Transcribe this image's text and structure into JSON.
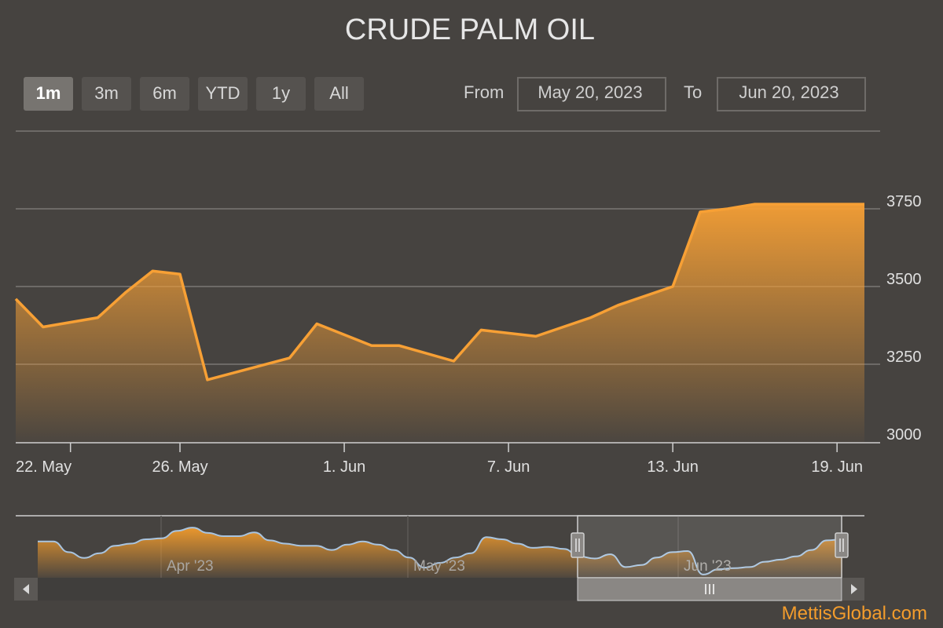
{
  "title": "CRUDE PALM OIL",
  "range_selector": {
    "buttons": [
      {
        "label": "1m",
        "selected": true
      },
      {
        "label": "3m",
        "selected": false
      },
      {
        "label": "6m",
        "selected": false
      },
      {
        "label": "YTD",
        "selected": false
      },
      {
        "label": "1y",
        "selected": false
      },
      {
        "label": "All",
        "selected": false
      }
    ],
    "from_label": "From",
    "from_value": "May 20, 2023",
    "to_label": "To",
    "to_value": "Jun 20, 2023"
  },
  "chart_data": {
    "type": "area",
    "title": "CRUDE PALM OIL",
    "x_ticks": [
      "22. May",
      "26. May",
      "1. Jun",
      "7. Jun",
      "13. Jun",
      "19. Jun"
    ],
    "y_ticks": [
      3000,
      3250,
      3500,
      3750
    ],
    "ylim": [
      3000,
      4000
    ],
    "grid": true,
    "series": [
      {
        "x": [
          "2023-05-20",
          "2023-05-21",
          "2023-05-23",
          "2023-05-24",
          "2023-05-25",
          "2023-05-26",
          "2023-05-27",
          "2023-05-30",
          "2023-05-31",
          "2023-06-02",
          "2023-06-03",
          "2023-06-05",
          "2023-06-06",
          "2023-06-08",
          "2023-06-10",
          "2023-06-11",
          "2023-06-13",
          "2023-06-14",
          "2023-06-15",
          "2023-06-16",
          "2023-06-18",
          "2023-06-19",
          "2023-06-20"
        ],
        "y": [
          3460,
          3370,
          3400,
          3480,
          3550,
          3540,
          3200,
          3270,
          3380,
          3310,
          3310,
          3260,
          3360,
          3340,
          3400,
          3440,
          3500,
          3740,
          3750,
          3765,
          3765,
          3765,
          3765
        ]
      }
    ]
  },
  "navigator": {
    "labels": [
      "Apr '23",
      "May '23",
      "Jun '23"
    ],
    "series": [
      3440,
      3440,
      3340,
      3285,
      3330,
      3400,
      3420,
      3460,
      3470,
      3540,
      3570,
      3520,
      3490,
      3490,
      3525,
      3450,
      3420,
      3400,
      3400,
      3360,
      3410,
      3440,
      3410,
      3360,
      3290,
      3195,
      3240,
      3290,
      3330,
      3480,
      3460,
      3420,
      3380,
      3390,
      3370,
      3300,
      3280,
      3320,
      3200,
      3220,
      3290,
      3340,
      3350,
      3130,
      3180,
      3190,
      3200,
      3250,
      3270,
      3300,
      3360,
      3450,
      3460
    ]
  },
  "brand": "MettisGlobal.com",
  "colors": {
    "background": "#464340",
    "accent": "#f7a035",
    "navigator_line": "#a8c4e0"
  }
}
